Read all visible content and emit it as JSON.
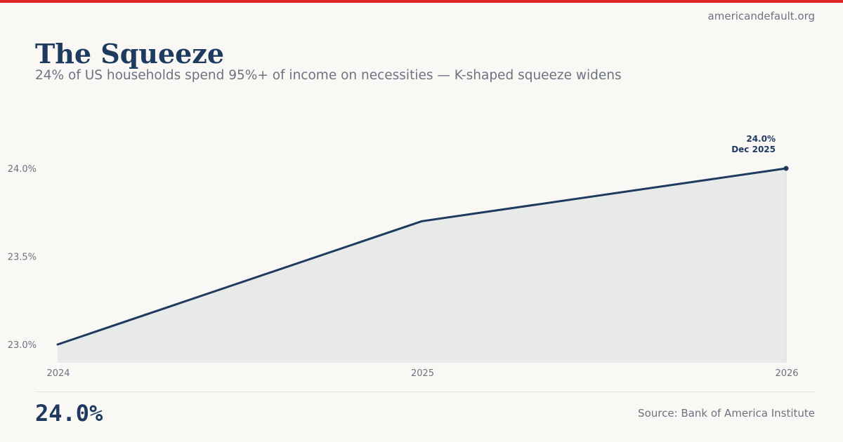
{
  "brand": {
    "site": "americandefault.org",
    "accent": "#e02424"
  },
  "header": {
    "title": "The Squeeze",
    "subtitle": "24% of US households spend 95%+ of income on necessities — K-shaped squeeze widens"
  },
  "chart_data": {
    "type": "area",
    "title": "The Squeeze",
    "xlabel": "",
    "ylabel": "",
    "x": [
      2024,
      2025,
      2026
    ],
    "values": [
      23.0,
      23.7,
      24.0
    ],
    "x_ticks": [
      "2024",
      "2025",
      "2026"
    ],
    "y_ticks": [
      23.0,
      23.5,
      24.0
    ],
    "y_tick_labels": [
      "23.0%",
      "23.5%",
      "24.0%"
    ],
    "ylim": [
      22.9,
      24.0
    ],
    "xlim": [
      2024,
      2026
    ],
    "grid": false,
    "line_color": "#1e3a5f",
    "fill_color": "#e8eaea",
    "annotation": {
      "value": "24.0%",
      "date": "Dec 2025"
    }
  },
  "footer": {
    "big_value": "24.0%",
    "source": "Source: Bank of America Institute"
  }
}
